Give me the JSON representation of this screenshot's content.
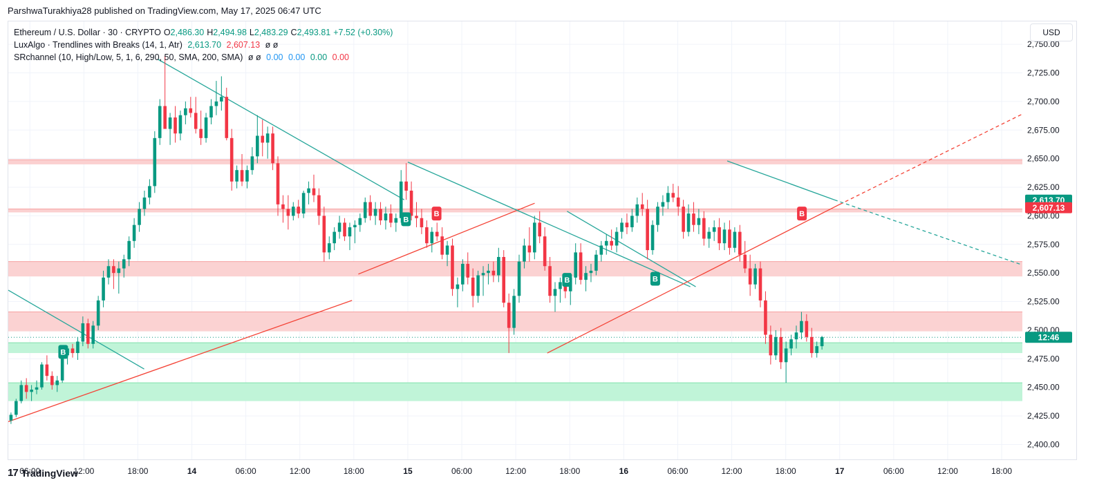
{
  "header": {
    "published": "ParshwaTurakhiya28 published on TradingView.com, May 17, 2025 06:47 UTC"
  },
  "legend": {
    "symbol": "Ethereum / U.S. Dollar · 30 · CRYPTO",
    "open_label": "O",
    "open": "2,486.30",
    "high_label": "H",
    "high": "2,494.98",
    "low_label": "L",
    "low": "2,483.29",
    "close_label": "C",
    "close": "2,493.81",
    "change": "+7.52 (+0.30%)",
    "lux_name": "LuxAlgo · Trendlines with Breaks (14, 1, Atr)",
    "lux_up": "2,613.70",
    "lux_down": "2,607.13",
    "lux_empty": "ø  ø",
    "sr_name": "SRchannel (10, High/Low, 5, 1, 6, 290, 50, SMA, 200, SMA)",
    "sr_empty": "ø  ø",
    "sr_v1": "0.00",
    "sr_v2": "0.00",
    "sr_v3": "0.00",
    "sr_v4": "0.00"
  },
  "currency_button": "USD",
  "footer": {
    "brand": "TradingView",
    "mark": "17"
  },
  "colors": {
    "up": "#089981",
    "down": "#f23645",
    "trend_dn": "#26a69a",
    "trend_up": "#f44336",
    "resistance_fill": "#fbd0d0",
    "support_fill": "#bdf3d6",
    "grid": "#f0f3fa"
  },
  "chart_data": {
    "type": "candlestick",
    "price_axis": {
      "ticks": [
        2400,
        2425,
        2450,
        2475,
        2500,
        2525,
        2550,
        2575,
        2600,
        2625,
        2650,
        2675,
        2700,
        2725,
        2750
      ],
      "tick_labels": [
        "2,400.00",
        "2,425.00",
        "2,450.00",
        "2,475.00",
        "2,500.00",
        "2,525.00",
        "2,550.00",
        "2,575.00",
        "2,600.00",
        "2,625.00",
        "2,650.00",
        "2,675.00",
        "2,700.00",
        "2,725.00",
        "2,750.00"
      ],
      "ylim": [
        2387,
        2770
      ]
    },
    "time_axis": {
      "labels": [
        "06:00",
        "12:00",
        "18:00",
        "14",
        "06:00",
        "12:00",
        "18:00",
        "15",
        "06:00",
        "12:00",
        "18:00",
        "16",
        "06:00",
        "12:00",
        "18:00",
        "17",
        "06:00",
        "12:00",
        "18:00"
      ],
      "bold": [
        false,
        false,
        false,
        true,
        false,
        false,
        false,
        true,
        false,
        false,
        false,
        true,
        false,
        false,
        false,
        true,
        false,
        false,
        false
      ],
      "hours": [
        6,
        12,
        18,
        24,
        30,
        36,
        42,
        48,
        54,
        60,
        66,
        72,
        78,
        84,
        90,
        96,
        102,
        108,
        114
      ],
      "xlim": [
        3.6,
        116.3
      ]
    },
    "price_badges": [
      {
        "value": "2,613.70",
        "price": 2613.7,
        "color": "#089981"
      },
      {
        "value": "2,607.13",
        "price": 2607.13,
        "color": "#f23645"
      },
      {
        "value": "12:46",
        "price": 2493.81,
        "color": "#089981"
      }
    ],
    "last_price": 2493.81,
    "sr_zones": [
      {
        "kind": "resistance",
        "from": 2645,
        "to": 2649
      },
      {
        "kind": "resistance",
        "from": 2603,
        "to": 2606
      },
      {
        "kind": "resistance",
        "from": 2547,
        "to": 2560
      },
      {
        "kind": "resistance",
        "from": 2499,
        "to": 2516
      },
      {
        "kind": "support",
        "from": 2480,
        "to": 2489
      },
      {
        "kind": "support",
        "from": 2438,
        "to": 2454
      }
    ],
    "trendlines": [
      {
        "kind": "down",
        "x1": 3.6,
        "y1": 2535,
        "x2": 18.7,
        "y2": 2466,
        "dashed": false
      },
      {
        "kind": "up",
        "x1": 3.6,
        "y1": 2420,
        "x2": 41.8,
        "y2": 2526,
        "dashed": false
      },
      {
        "kind": "down",
        "x1": 20.2,
        "y1": 2737,
        "x2": 47.6,
        "y2": 2614,
        "dashed": false
      },
      {
        "kind": "up",
        "x1": 42.5,
        "y1": 2549,
        "x2": 62.1,
        "y2": 2611,
        "dashed": false
      },
      {
        "kind": "down",
        "x1": 48.0,
        "y1": 2647,
        "x2": 79.4,
        "y2": 2538,
        "dashed": false
      },
      {
        "kind": "down",
        "x1": 65.7,
        "y1": 2604,
        "x2": 80.0,
        "y2": 2538,
        "dashed": false
      },
      {
        "kind": "up",
        "x1": 63.5,
        "y1": 2480,
        "x2": 96.0,
        "y2": 2610,
        "dashed": false
      },
      {
        "kind": "up",
        "x1": 96.0,
        "y1": 2610,
        "x2": 116.3,
        "y2": 2689,
        "dashed": true
      },
      {
        "kind": "down",
        "x1": 83.5,
        "y1": 2648,
        "x2": 95.4,
        "y2": 2614,
        "dashed": false
      },
      {
        "kind": "down",
        "x1": 95.4,
        "y1": 2614,
        "x2": 116.3,
        "y2": 2557,
        "dashed": true
      }
    ],
    "break_signals": [
      {
        "label": "B",
        "kind": "up",
        "x": 9.7,
        "price": 2481
      },
      {
        "label": "B",
        "kind": "up",
        "x": 47.8,
        "price": 2597
      },
      {
        "label": "B",
        "kind": "down",
        "x": 51.2,
        "price": 2602
      },
      {
        "label": "B",
        "kind": "up",
        "x": 65.7,
        "price": 2544
      },
      {
        "label": "B",
        "kind": "up",
        "x": 75.5,
        "price": 2545
      },
      {
        "label": "B",
        "kind": "down",
        "x": 91.8,
        "price": 2602
      }
    ],
    "candles_ohlc": [
      [
        2421,
        2428,
        2418,
        2426
      ],
      [
        2426,
        2440,
        2424,
        2438
      ],
      [
        2438,
        2456,
        2436,
        2452
      ],
      [
        2452,
        2458,
        2440,
        2446
      ],
      [
        2446,
        2452,
        2438,
        2448
      ],
      [
        2448,
        2456,
        2444,
        2450
      ],
      [
        2450,
        2472,
        2448,
        2470
      ],
      [
        2470,
        2478,
        2456,
        2460
      ],
      [
        2460,
        2464,
        2448,
        2452
      ],
      [
        2452,
        2460,
        2446,
        2456
      ],
      [
        2456,
        2480,
        2454,
        2478
      ],
      [
        2478,
        2486,
        2470,
        2484
      ],
      [
        2484,
        2488,
        2476,
        2480
      ],
      [
        2480,
        2494,
        2474,
        2490
      ],
      [
        2490,
        2512,
        2486,
        2506
      ],
      [
        2506,
        2510,
        2484,
        2488
      ],
      [
        2488,
        2508,
        2484,
        2504
      ],
      [
        2504,
        2530,
        2500,
        2526
      ],
      [
        2526,
        2552,
        2520,
        2546
      ],
      [
        2546,
        2562,
        2540,
        2556
      ],
      [
        2556,
        2562,
        2536,
        2550
      ],
      [
        2550,
        2560,
        2532,
        2554
      ],
      [
        2554,
        2566,
        2546,
        2562
      ],
      [
        2562,
        2582,
        2556,
        2578
      ],
      [
        2578,
        2598,
        2572,
        2592
      ],
      [
        2592,
        2612,
        2586,
        2606
      ],
      [
        2606,
        2622,
        2600,
        2616
      ],
      [
        2616,
        2632,
        2610,
        2626
      ],
      [
        2626,
        2674,
        2620,
        2668
      ],
      [
        2668,
        2702,
        2662,
        2696
      ],
      [
        2696,
        2740,
        2690,
        2676
      ],
      [
        2676,
        2690,
        2662,
        2686
      ],
      [
        2686,
        2696,
        2664,
        2672
      ],
      [
        2672,
        2692,
        2666,
        2688
      ],
      [
        2688,
        2700,
        2680,
        2694
      ],
      [
        2694,
        2704,
        2686,
        2690
      ],
      [
        2690,
        2704,
        2672,
        2676
      ],
      [
        2676,
        2692,
        2662,
        2668
      ],
      [
        2668,
        2690,
        2664,
        2686
      ],
      [
        2686,
        2702,
        2680,
        2696
      ],
      [
        2696,
        2718,
        2688,
        2700
      ],
      [
        2700,
        2722,
        2692,
        2704
      ],
      [
        2704,
        2712,
        2666,
        2668
      ],
      [
        2668,
        2676,
        2622,
        2630
      ],
      [
        2630,
        2644,
        2624,
        2640
      ],
      [
        2640,
        2654,
        2626,
        2630
      ],
      [
        2630,
        2644,
        2624,
        2640
      ],
      [
        2640,
        2660,
        2636,
        2652
      ],
      [
        2652,
        2688,
        2646,
        2670
      ],
      [
        2670,
        2684,
        2652,
        2664
      ],
      [
        2664,
        2678,
        2650,
        2672
      ],
      [
        2672,
        2678,
        2640,
        2646
      ],
      [
        2646,
        2652,
        2600,
        2610
      ],
      [
        2610,
        2618,
        2594,
        2606
      ],
      [
        2606,
        2618,
        2588,
        2600
      ],
      [
        2600,
        2612,
        2596,
        2608
      ],
      [
        2608,
        2614,
        2598,
        2602
      ],
      [
        2602,
        2622,
        2598,
        2620
      ],
      [
        2620,
        2630,
        2610,
        2624
      ],
      [
        2624,
        2636,
        2612,
        2618
      ],
      [
        2618,
        2624,
        2592,
        2600
      ],
      [
        2600,
        2608,
        2560,
        2568
      ],
      [
        2568,
        2582,
        2562,
        2576
      ],
      [
        2576,
        2590,
        2570,
        2586
      ],
      [
        2586,
        2600,
        2580,
        2594
      ],
      [
        2594,
        2598,
        2578,
        2582
      ],
      [
        2582,
        2594,
        2570,
        2590
      ],
      [
        2590,
        2596,
        2576,
        2592
      ],
      [
        2592,
        2602,
        2586,
        2598
      ],
      [
        2598,
        2616,
        2594,
        2612
      ],
      [
        2612,
        2618,
        2596,
        2600
      ],
      [
        2600,
        2612,
        2592,
        2606
      ],
      [
        2606,
        2612,
        2592,
        2596
      ],
      [
        2596,
        2608,
        2588,
        2602
      ],
      [
        2602,
        2610,
        2590,
        2594
      ],
      [
        2594,
        2602,
        2586,
        2598
      ],
      [
        2598,
        2640,
        2594,
        2630
      ],
      [
        2630,
        2646,
        2614,
        2622
      ],
      [
        2622,
        2630,
        2596,
        2600
      ],
      [
        2600,
        2612,
        2590,
        2598
      ],
      [
        2598,
        2606,
        2584,
        2590
      ],
      [
        2590,
        2596,
        2572,
        2576
      ],
      [
        2576,
        2590,
        2568,
        2586
      ],
      [
        2586,
        2594,
        2578,
        2582
      ],
      [
        2582,
        2590,
        2562,
        2566
      ],
      [
        2566,
        2578,
        2556,
        2574
      ],
      [
        2574,
        2580,
        2530,
        2536
      ],
      [
        2536,
        2546,
        2520,
        2540
      ],
      [
        2540,
        2562,
        2534,
        2558
      ],
      [
        2558,
        2568,
        2540,
        2546
      ],
      [
        2546,
        2554,
        2520,
        2530
      ],
      [
        2530,
        2552,
        2524,
        2548
      ],
      [
        2548,
        2556,
        2530,
        2550
      ],
      [
        2550,
        2558,
        2540,
        2552
      ],
      [
        2552,
        2560,
        2542,
        2548
      ],
      [
        2548,
        2572,
        2542,
        2564
      ],
      [
        2564,
        2570,
        2520,
        2524
      ],
      [
        2524,
        2532,
        2480,
        2502
      ],
      [
        2502,
        2536,
        2496,
        2530
      ],
      [
        2530,
        2566,
        2524,
        2560
      ],
      [
        2560,
        2580,
        2554,
        2574
      ],
      [
        2574,
        2590,
        2560,
        2568
      ],
      [
        2568,
        2600,
        2562,
        2594
      ],
      [
        2594,
        2604,
        2576,
        2582
      ],
      [
        2582,
        2590,
        2552,
        2556
      ],
      [
        2556,
        2564,
        2524,
        2530
      ],
      [
        2530,
        2542,
        2516,
        2536
      ],
      [
        2536,
        2546,
        2524,
        2542
      ],
      [
        2542,
        2550,
        2528,
        2534
      ],
      [
        2534,
        2550,
        2522,
        2546
      ],
      [
        2546,
        2576,
        2540,
        2568
      ],
      [
        2568,
        2576,
        2540,
        2544
      ],
      [
        2544,
        2556,
        2534,
        2550
      ],
      [
        2550,
        2558,
        2542,
        2552
      ],
      [
        2552,
        2570,
        2548,
        2566
      ],
      [
        2566,
        2578,
        2560,
        2574
      ],
      [
        2574,
        2584,
        2566,
        2578
      ],
      [
        2578,
        2588,
        2570,
        2574
      ],
      [
        2574,
        2590,
        2568,
        2586
      ],
      [
        2586,
        2598,
        2580,
        2594
      ],
      [
        2594,
        2602,
        2584,
        2590
      ],
      [
        2590,
        2606,
        2586,
        2600
      ],
      [
        2600,
        2616,
        2594,
        2610
      ],
      [
        2610,
        2620,
        2600,
        2606
      ],
      [
        2606,
        2614,
        2562,
        2570
      ],
      [
        2570,
        2596,
        2566,
        2592
      ],
      [
        2592,
        2612,
        2586,
        2608
      ],
      [
        2608,
        2618,
        2600,
        2612
      ],
      [
        2612,
        2626,
        2606,
        2620
      ],
      [
        2620,
        2628,
        2612,
        2616
      ],
      [
        2616,
        2626,
        2600,
        2608
      ],
      [
        2608,
        2614,
        2580,
        2586
      ],
      [
        2586,
        2610,
        2582,
        2602
      ],
      [
        2602,
        2612,
        2586,
        2592
      ],
      [
        2592,
        2606,
        2584,
        2598
      ],
      [
        2598,
        2604,
        2574,
        2580
      ],
      [
        2580,
        2590,
        2572,
        2586
      ],
      [
        2586,
        2596,
        2578,
        2590
      ],
      [
        2590,
        2598,
        2570,
        2576
      ],
      [
        2576,
        2594,
        2570,
        2588
      ],
      [
        2588,
        2596,
        2566,
        2572
      ],
      [
        2572,
        2590,
        2568,
        2586
      ],
      [
        2586,
        2592,
        2560,
        2566
      ],
      [
        2566,
        2578,
        2550,
        2554
      ],
      [
        2554,
        2566,
        2530,
        2540
      ],
      [
        2540,
        2558,
        2536,
        2554
      ],
      [
        2554,
        2560,
        2520,
        2526
      ],
      [
        2526,
        2534,
        2488,
        2496
      ],
      [
        2496,
        2504,
        2470,
        2478
      ],
      [
        2478,
        2500,
        2474,
        2494
      ],
      [
        2494,
        2502,
        2466,
        2472
      ],
      [
        2472,
        2490,
        2454,
        2484
      ],
      [
        2484,
        2496,
        2478,
        2492
      ],
      [
        2492,
        2504,
        2484,
        2498
      ],
      [
        2498,
        2516,
        2492,
        2508
      ],
      [
        2508,
        2514,
        2490,
        2494
      ],
      [
        2494,
        2502,
        2476,
        2480
      ],
      [
        2480,
        2490,
        2476,
        2486
      ],
      [
        2486,
        2495,
        2483,
        2494
      ]
    ]
  }
}
